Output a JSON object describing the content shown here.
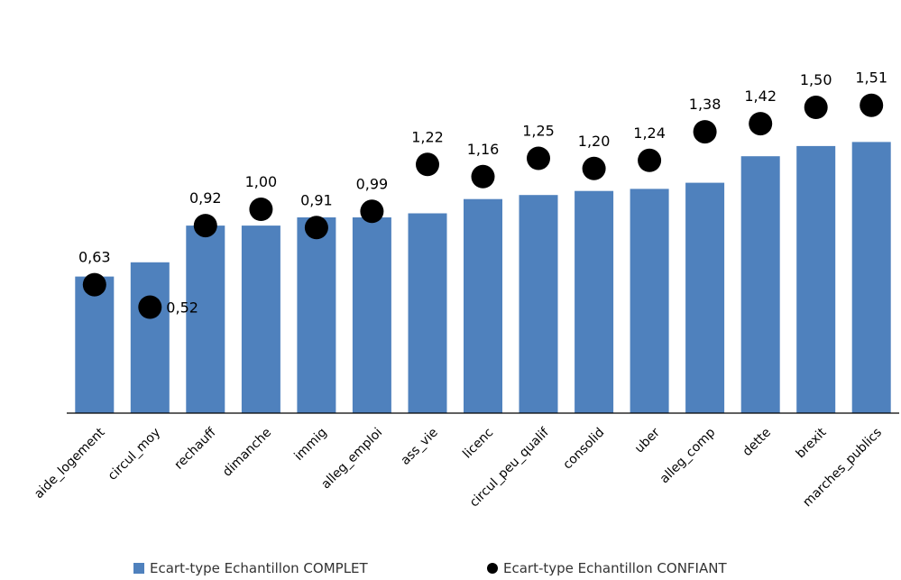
{
  "chart_data": {
    "type": "bar",
    "categories": [
      "aide_logement",
      "circul_moy",
      "rechauff",
      "dimanche",
      "immig",
      "alleg_emploi",
      "ass_vie",
      "licenc",
      "circul_peu_qualif",
      "consolid",
      "uber",
      "alleg_comp",
      "dette",
      "brexit",
      "marches_publics"
    ],
    "series": [
      {
        "name": "Ecart-type Echantillon COMPLET",
        "kind": "bar",
        "color": "#4F81BD",
        "values": [
          0.67,
          0.74,
          0.92,
          0.92,
          0.96,
          0.96,
          0.98,
          1.05,
          1.07,
          1.09,
          1.1,
          1.13,
          1.26,
          1.31,
          1.33
        ]
      },
      {
        "name": "Ecart-type Echantillon CONFIANT",
        "kind": "dot",
        "color": "#000000",
        "values": [
          0.63,
          0.52,
          0.92,
          1.0,
          0.91,
          0.99,
          1.22,
          1.16,
          1.25,
          1.2,
          1.24,
          1.38,
          1.42,
          1.5,
          1.51
        ],
        "labels": [
          "0,63",
          "0,52",
          "0,92",
          "1,00",
          "0,91",
          "0,99",
          "1,22",
          "1,16",
          "1,25",
          "1,20",
          "1,24",
          "1,38",
          "1,42",
          "1,50",
          "1,51"
        ]
      }
    ],
    "ylim": [
      0,
      1.65
    ],
    "grid": false,
    "legend_position": "bottom"
  }
}
